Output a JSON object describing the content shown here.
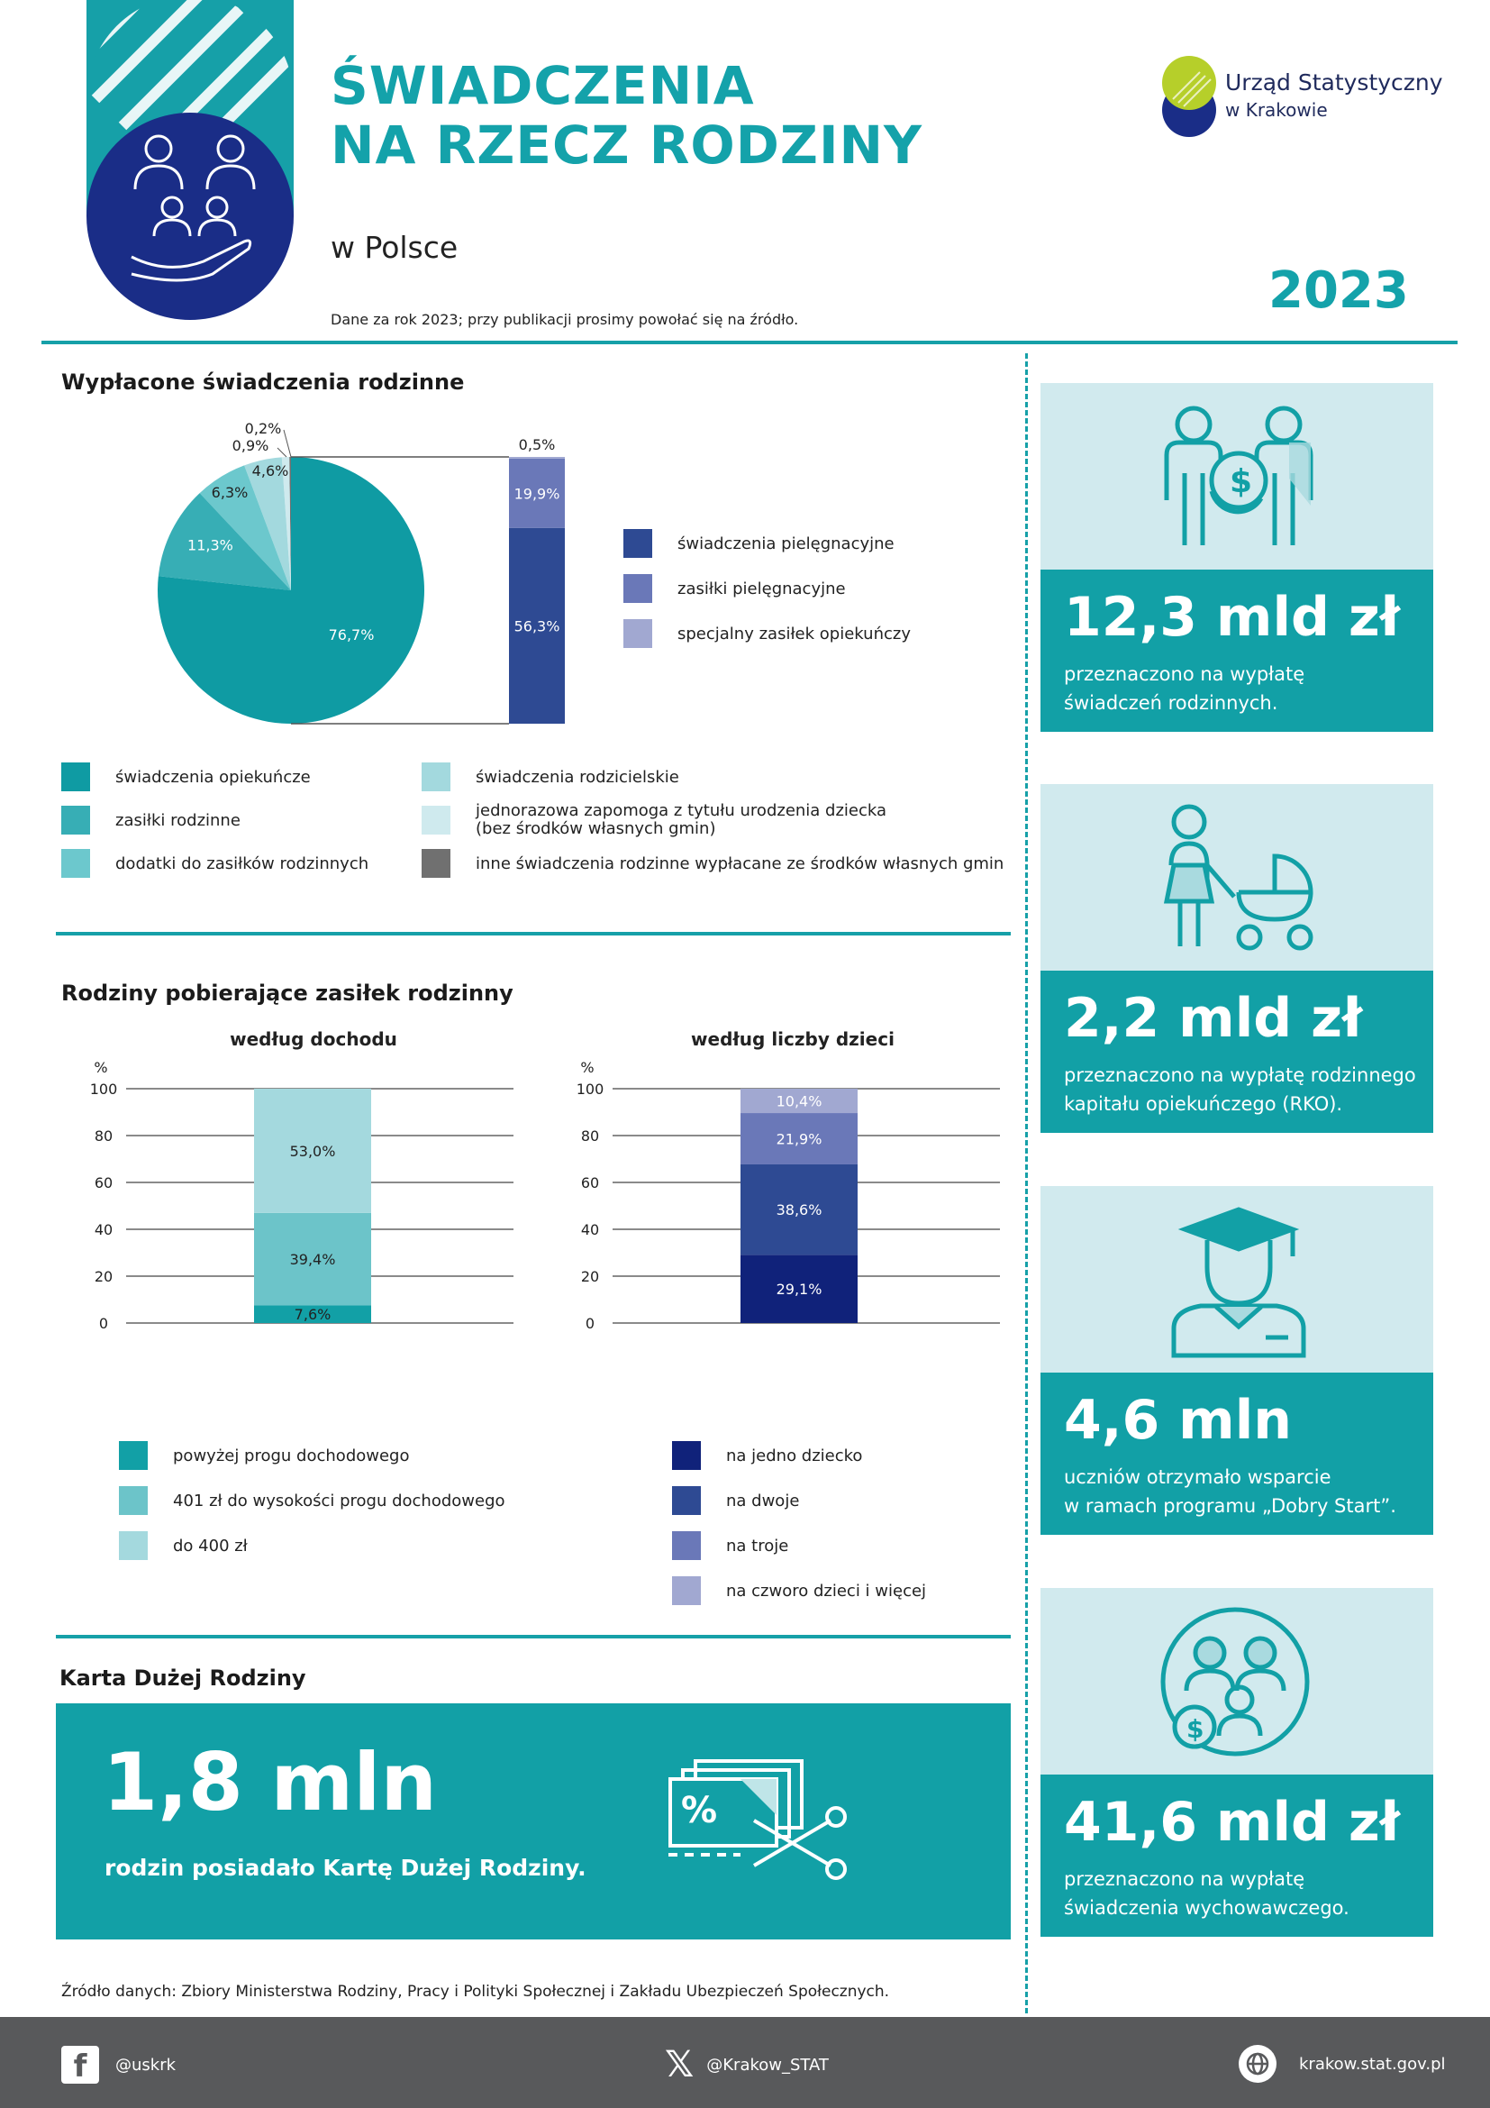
{
  "header": {
    "title_line1": "ŚWIADCZENIA",
    "title_line2": "NA RZECZ RODZINY",
    "subtitle": "w Polsce",
    "note": "Dane za rok 2023; przy publikacji prosimy powołać się na źródło.",
    "year": "2023",
    "logo_line1": "Urząd Statystyczny",
    "logo_line2": "w Krakowie"
  },
  "section1": {
    "title": "Wypłacone świadczenia rodzinne",
    "legend": [
      {
        "label": "świadczenia opiekuńcze",
        "color": "#0f9ba3"
      },
      {
        "label": "zasiłki rodzinne",
        "color": "#37aeb5"
      },
      {
        "label": "dodatki do zasiłków rodzinnych",
        "color": "#6cc8cd"
      },
      {
        "label": "świadczenia rodzicielskie",
        "color": "#a3d9de"
      },
      {
        "label": "jednorazowa zapomoga z tytułu urodzenia dziecka",
        "label2": "(bez środków własnych gmin)",
        "color": "#cfeaee"
      },
      {
        "label": "inne świadczenia rodzinne wypłacane ze środków własnych gmin",
        "color": "#707070"
      }
    ],
    "bar_legend": [
      {
        "label": "świadczenia pielęgnacyjne",
        "color": "#2e4a93"
      },
      {
        "label": "zasiłki pielęgnacyjne",
        "color": "#6a78b8"
      },
      {
        "label": "specjalny zasiłek opiekuńczy",
        "color": "#a1a8d1"
      }
    ]
  },
  "section2": {
    "title": "Rodziny pobierające zasiłek rodzinny",
    "left_legend": [
      {
        "label": "powyżej progu dochodowego",
        "color": "#12a0a6"
      },
      {
        "label": "401 zł do wysokości progu dochodowego",
        "color": "#6cc4c9"
      },
      {
        "label": "do 400 zł",
        "color": "#a4d9de"
      }
    ],
    "right_legend": [
      {
        "label": "na jedno dziecko",
        "color": "#10227a"
      },
      {
        "label": "na dwoje",
        "color": "#2e4a93"
      },
      {
        "label": "na troje",
        "color": "#6a78b8"
      },
      {
        "label": "na czworo dzieci i więcej",
        "color": "#a1a8d1"
      }
    ]
  },
  "chart_data": [
    {
      "type": "pie",
      "labels": [
        "świadczenia opiekuńcze",
        "zasiłki rodzinne",
        "dodatki do zasiłków rodzinnych",
        "świadczenia rodzicielskie",
        "jednorazowa zapomoga z tytułu urodzenia dziecka (bez środków własnych gmin)",
        "inne świadczenia rodzinne wypłacane ze środków własnych gmin"
      ],
      "values": [
        76.7,
        11.3,
        6.3,
        4.6,
        0.9,
        0.2
      ],
      "value_labels": [
        "76,7%",
        "11,3%",
        "6,3%",
        "4,6%",
        "0,9%",
        "0,2%"
      ],
      "colors": [
        "#0f9ba3",
        "#37aeb5",
        "#6cc8cd",
        "#a3d9de",
        "#cfeaee",
        "#707070"
      ]
    },
    {
      "type": "bar",
      "stacked": true,
      "series": [
        {
          "name": "świadczenia pielęgnacyjne",
          "values": [
            56.3
          ],
          "label": "56,3%",
          "color": "#2e4a93"
        },
        {
          "name": "zasiłki pielęgnacyjne",
          "values": [
            19.9
          ],
          "label": "19,9%",
          "color": "#6a78b8"
        },
        {
          "name": "specjalny zasiłek opiekuńczy",
          "values": [
            0.5
          ],
          "label": "0,5%",
          "color": "#a1a8d1"
        }
      ]
    },
    {
      "type": "bar",
      "stacked": true,
      "title": "według dochodu",
      "ylabel": "%",
      "ylim": [
        0,
        100
      ],
      "yticks": [
        0,
        20,
        40,
        60,
        80,
        100
      ],
      "grid": true,
      "series": [
        {
          "name": "powyżej progu dochodowego",
          "values": [
            7.6
          ],
          "label": "7,6%",
          "color": "#12a0a6"
        },
        {
          "name": "401 zł do wysokości progu dochodowego",
          "values": [
            39.4
          ],
          "label": "39,4%",
          "color": "#6cc4c9"
        },
        {
          "name": "do 400 zł",
          "values": [
            53.0
          ],
          "label": "53,0%",
          "color": "#a4d9de"
        }
      ]
    },
    {
      "type": "bar",
      "stacked": true,
      "title": "według liczby dzieci",
      "ylabel": "%",
      "ylim": [
        0,
        100
      ],
      "yticks": [
        0,
        20,
        40,
        60,
        80,
        100
      ],
      "grid": true,
      "series": [
        {
          "name": "na jedno dziecko",
          "values": [
            29.1
          ],
          "label": "29,1%",
          "color": "#10227a"
        },
        {
          "name": "na dwoje",
          "values": [
            38.6
          ],
          "label": "38,6%",
          "color": "#2e4a93"
        },
        {
          "name": "na troje",
          "values": [
            21.9
          ],
          "label": "21,9%",
          "color": "#6a78b8"
        },
        {
          "name": "na czworo dzieci i więcej",
          "values": [
            10.4
          ],
          "label": "10,4%",
          "color": "#a1a8d1"
        }
      ]
    }
  ],
  "karta": {
    "title": "Karta Dużej Rodziny",
    "value": "1,8 mln",
    "desc": "rodzin posiadało Kartę Dużej Rodziny."
  },
  "kpis": [
    {
      "value": "12,3 mld zł",
      "desc1": "przeznaczono na wypłatę",
      "desc2": "świadczeń rodzinnych.",
      "icon": "family-money-icon"
    },
    {
      "value": "2,2 mld zł",
      "desc1": "przeznaczono na wypłatę rodzinnego",
      "desc2": "kapitału opiekuńczego (RKO).",
      "icon": "mother-stroller-icon"
    },
    {
      "value": "4,6 mln",
      "desc1": "uczniów otrzymało wsparcie",
      "desc2": "w ramach programu „Dobry Start”.",
      "icon": "graduate-icon"
    },
    {
      "value": "41,6 mld zł",
      "desc1": "przeznaczono na wypłatę",
      "desc2": "świadczenia wychowawczego.",
      "icon": "parents-child-money-icon"
    }
  ],
  "source": "Źródło danych: Zbiory Ministerstwa Rodziny, Pracy i Polityki Społecznej i Zakładu Ubezpieczeń Społecznych.",
  "footer": {
    "facebook": "@uskrk",
    "x": "@Krakow_STAT",
    "web": "krakow.stat.gov.pl"
  }
}
